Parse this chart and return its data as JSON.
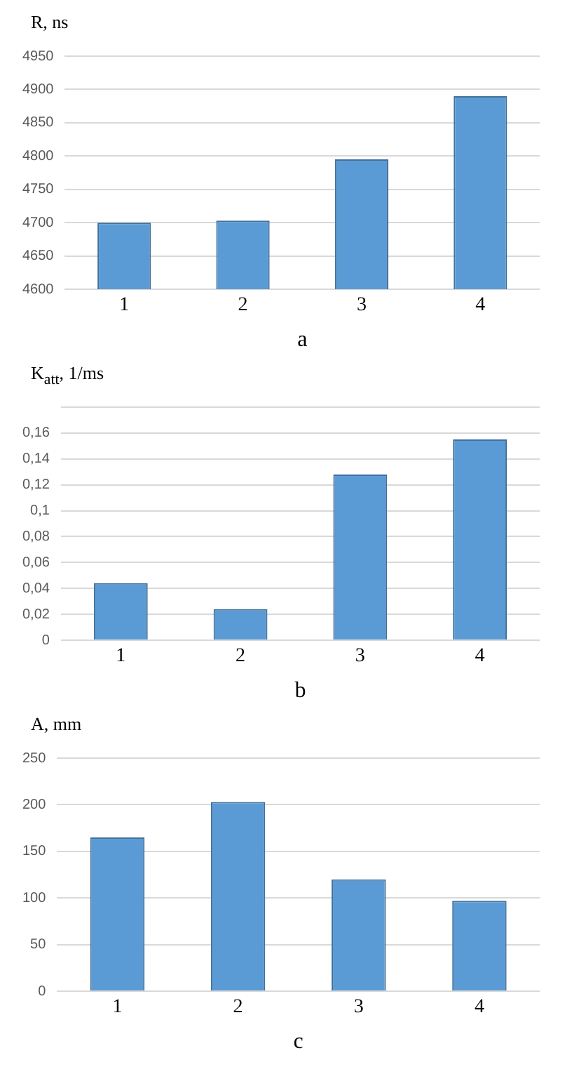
{
  "chart_data": [
    {
      "type": "bar",
      "ylabel": "R, ns",
      "xlabel": "a",
      "categories": [
        "1",
        "2",
        "3",
        "4"
      ],
      "values": [
        4700,
        4703,
        4795,
        4890
      ],
      "color": "#5b9bd5",
      "ylim": [
        4600,
        4950
      ],
      "yticks": [
        4600,
        4650,
        4700,
        4750,
        4800,
        4850,
        4900,
        4950
      ],
      "grid": "y",
      "legend": false
    },
    {
      "type": "bar",
      "ylabel": "K$_{att}$, 1/ms",
      "xlabel": "b",
      "categories": [
        "1",
        "2",
        "3",
        "4"
      ],
      "values": [
        0.044,
        0.024,
        0.128,
        0.155
      ],
      "color": "#5b9bd5",
      "ylim": [
        0,
        0.18
      ],
      "yticks": [
        0,
        {
          "value": 0.02,
          "label": "0,02"
        },
        {
          "value": 0.04,
          "label": "0,04"
        },
        {
          "value": 0.06,
          "label": "0,06"
        },
        {
          "value": 0.08,
          "label": "0,08"
        },
        {
          "value": 0.1,
          "label": "0,1"
        },
        {
          "value": 0.12,
          "label": "0,12"
        },
        {
          "value": 0.14,
          "label": "0,14"
        },
        {
          "value": 0.16,
          "label": "0,16"
        },
        {
          "value": 0.18,
          "label": null
        }
      ],
      "grid": "y",
      "legend": false
    },
    {
      "type": "bar",
      "ylabel": "A, mm",
      "xlabel": "c",
      "categories": [
        "1",
        "2",
        "3",
        "4"
      ],
      "values": [
        165,
        203,
        120,
        97
      ],
      "color": "#5b9bd5",
      "ylim": [
        0,
        250
      ],
      "yticks": [
        0,
        50,
        100,
        150,
        200,
        250
      ],
      "grid": "y",
      "legend": false
    }
  ]
}
